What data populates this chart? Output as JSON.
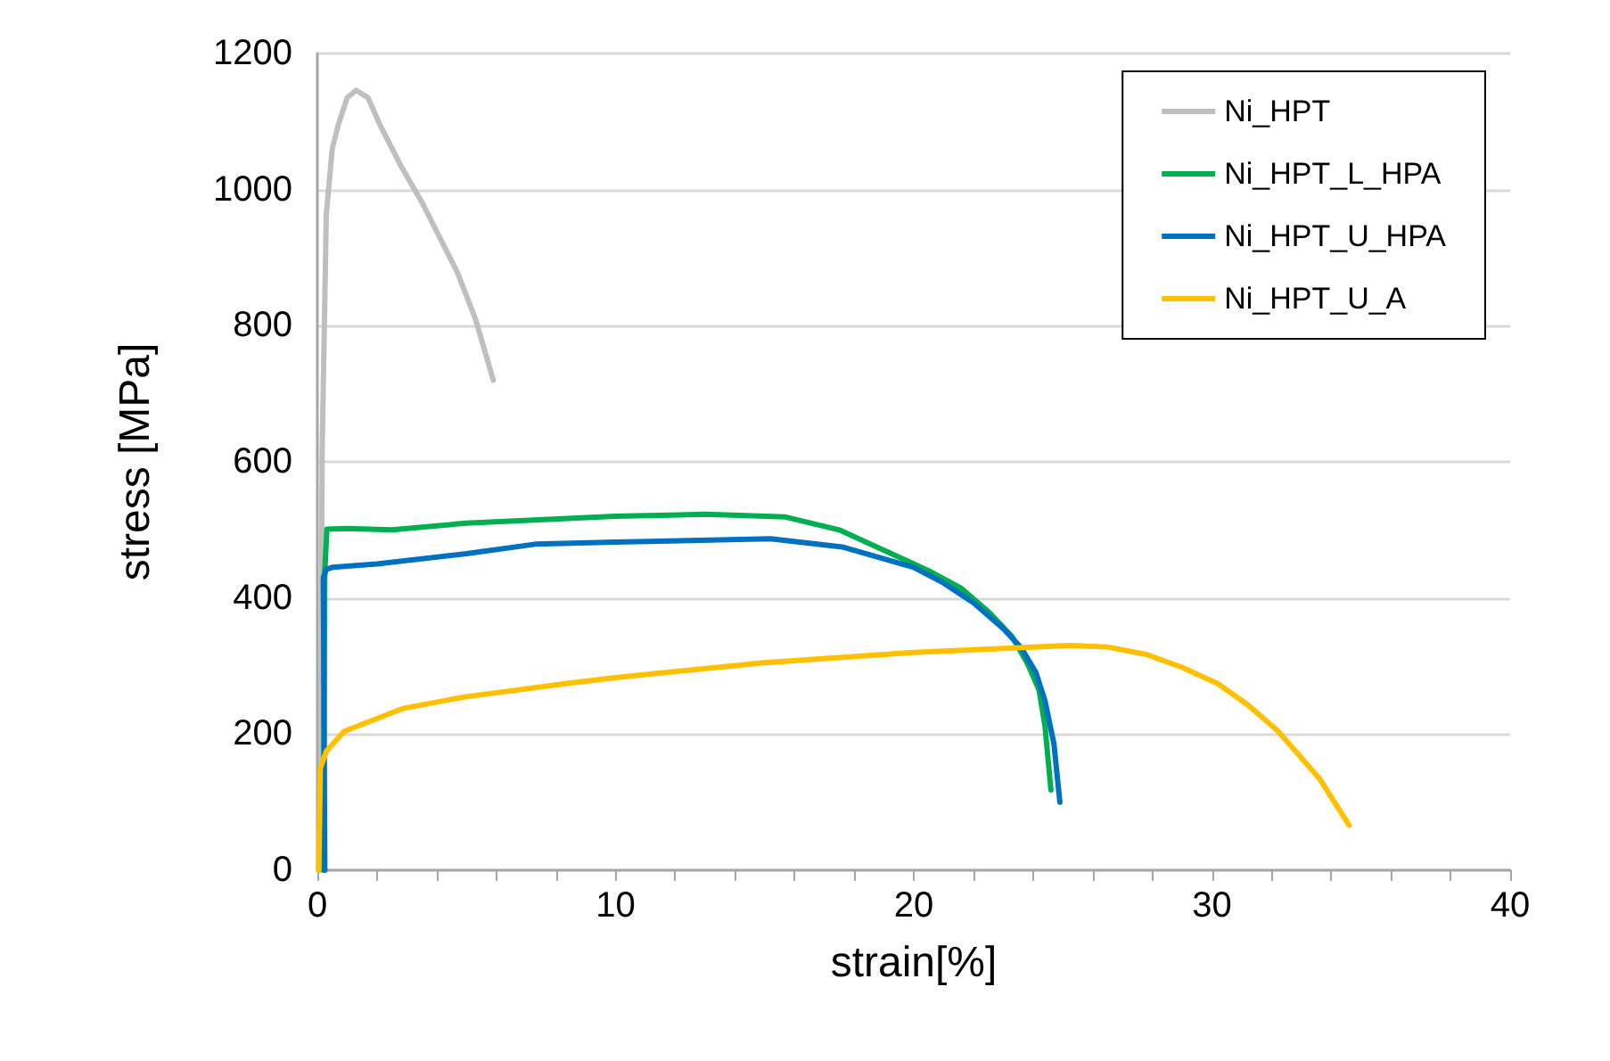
{
  "chart_data": {
    "type": "line",
    "xlabel": "strain[%]",
    "ylabel": "stress [MPa]",
    "xlim": [
      0,
      40
    ],
    "xticks": [
      0,
      {
        "value": 2,
        "label": null
      },
      {
        "value": 4,
        "label": null
      },
      {
        "value": 6,
        "label": null
      },
      {
        "value": 8,
        "label": null
      },
      10,
      {
        "value": 12,
        "label": null
      },
      {
        "value": 14,
        "label": null
      },
      {
        "value": 16,
        "label": null
      },
      {
        "value": 18,
        "label": null
      },
      20,
      {
        "value": 22,
        "label": null
      },
      {
        "value": 24,
        "label": null
      },
      {
        "value": 26,
        "label": null
      },
      {
        "value": 28,
        "label": null
      },
      30,
      {
        "value": 32,
        "label": null
      },
      {
        "value": 34,
        "label": null
      },
      {
        "value": 36,
        "label": null
      },
      {
        "value": 38,
        "label": null
      },
      40
    ],
    "ylim": [
      0,
      1200
    ],
    "yticks": [
      0,
      200,
      400,
      600,
      800,
      1000,
      1200
    ],
    "grid": "y",
    "legend": "top right",
    "marker": "none",
    "line_style": "solid",
    "series": [
      {
        "name": "Ni_HPT",
        "color": "#bfbfbf",
        "x": [
          0.1,
          0.16,
          0.3,
          0.5,
          0.7,
          1.0,
          1.3,
          1.7,
          2.1,
          2.8,
          3.5,
          4.1,
          4.7,
          5.3,
          5.9
        ],
        "values": [
          0,
          616,
          964,
          1060,
          1095,
          1135,
          1146,
          1135,
          1095,
          1035,
          982,
          930,
          878,
          810,
          720
        ]
      },
      {
        "name": "Ni_HPT_L_HPA",
        "color": "#00b050",
        "x": [
          0.2,
          0.25,
          0.32,
          1,
          2.5,
          5,
          10,
          13,
          15.7,
          17.5,
          19.2,
          20.5,
          21.6,
          22.5,
          23.3,
          23.8,
          24.2,
          24.4,
          24.6
        ],
        "values": [
          0,
          440,
          501,
          502,
          500,
          510,
          520,
          523,
          519,
          500,
          466,
          440,
          414,
          380,
          343,
          305,
          265,
          212,
          118
        ]
      },
      {
        "name": "Ni_HPT_U_HPA",
        "color": "#0070c0",
        "x": [
          0.25,
          0.2,
          0.3,
          0.5,
          2,
          5,
          7.3,
          10,
          15.2,
          17.6,
          20,
          21,
          22,
          23,
          23.6,
          24.1,
          24.4,
          24.7,
          24.9
        ],
        "values": [
          0,
          430,
          442,
          445,
          450,
          465,
          479,
          482,
          487,
          475,
          445,
          422,
          393,
          355,
          327,
          290,
          249,
          186,
          100
        ]
      },
      {
        "name": "Ni_HPT_U_A",
        "color": "#ffc000",
        "x": [
          0.05,
          0.1,
          0.3,
          0.9,
          2.9,
          5,
          8.5,
          10,
          15,
          20,
          25.2,
          26.5,
          27.8,
          29,
          30.2,
          31.2,
          32.2,
          33.6,
          34.6
        ],
        "values": [
          0,
          150,
          175,
          204,
          238,
          255,
          275,
          283,
          305,
          320,
          330,
          328,
          317,
          298,
          274,
          243,
          205,
          135,
          66
        ]
      }
    ]
  }
}
